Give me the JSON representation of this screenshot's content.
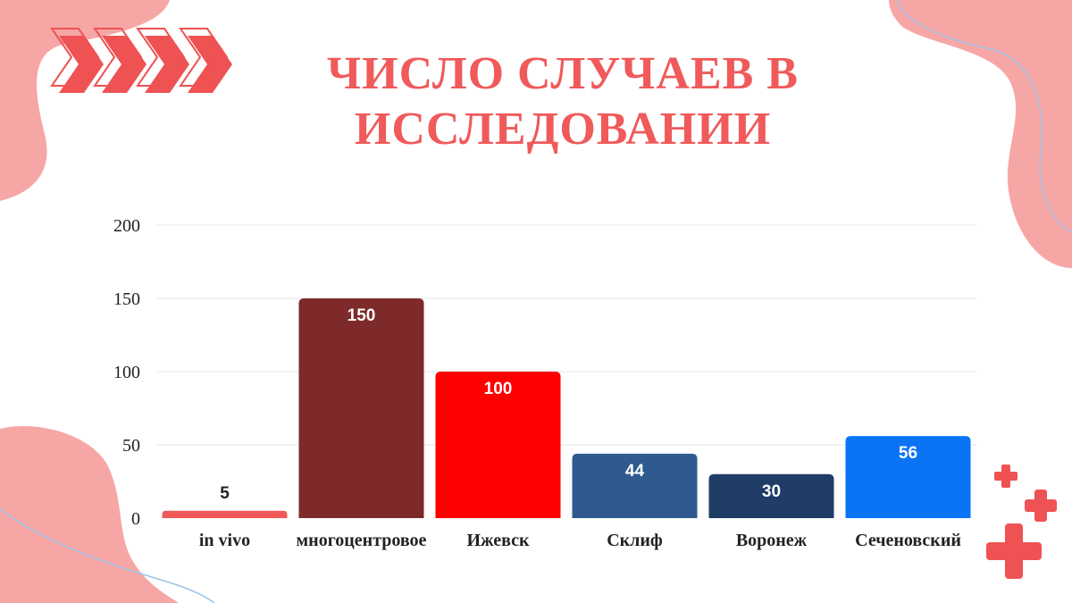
{
  "title_line1": "ЧИСЛО СЛУЧАЕВ В",
  "title_line2": "ИССЛЕДОВАНИИ",
  "colors": {
    "accent": "#f05a5a",
    "blob": "#f7a6a6",
    "gridline": "#e6e6e6",
    "cross": "#ee5253"
  },
  "icons": [
    "chevron-arrows-icon",
    "plus-cross-icon"
  ],
  "chart_data": {
    "type": "bar",
    "categories": [
      "in vivo",
      "многоцентровое",
      "Ижевск",
      "Склиф",
      "Воронеж",
      "Сеченовский"
    ],
    "values": [
      5,
      150,
      100,
      44,
      30,
      56
    ],
    "bar_colors": [
      "#f05a5a",
      "#7f2a2a",
      "#ff0000",
      "#2e5a8f",
      "#1f3d66",
      "#0a74f5"
    ],
    "label_colors": [
      "#222222",
      "#ffffff",
      "#ffffff",
      "#ffffff",
      "#ffffff",
      "#ffffff"
    ],
    "yticks": [
      "0",
      "50",
      "100",
      "150",
      "200"
    ],
    "ylim": [
      0,
      200
    ],
    "grid": true,
    "legend": "none"
  }
}
